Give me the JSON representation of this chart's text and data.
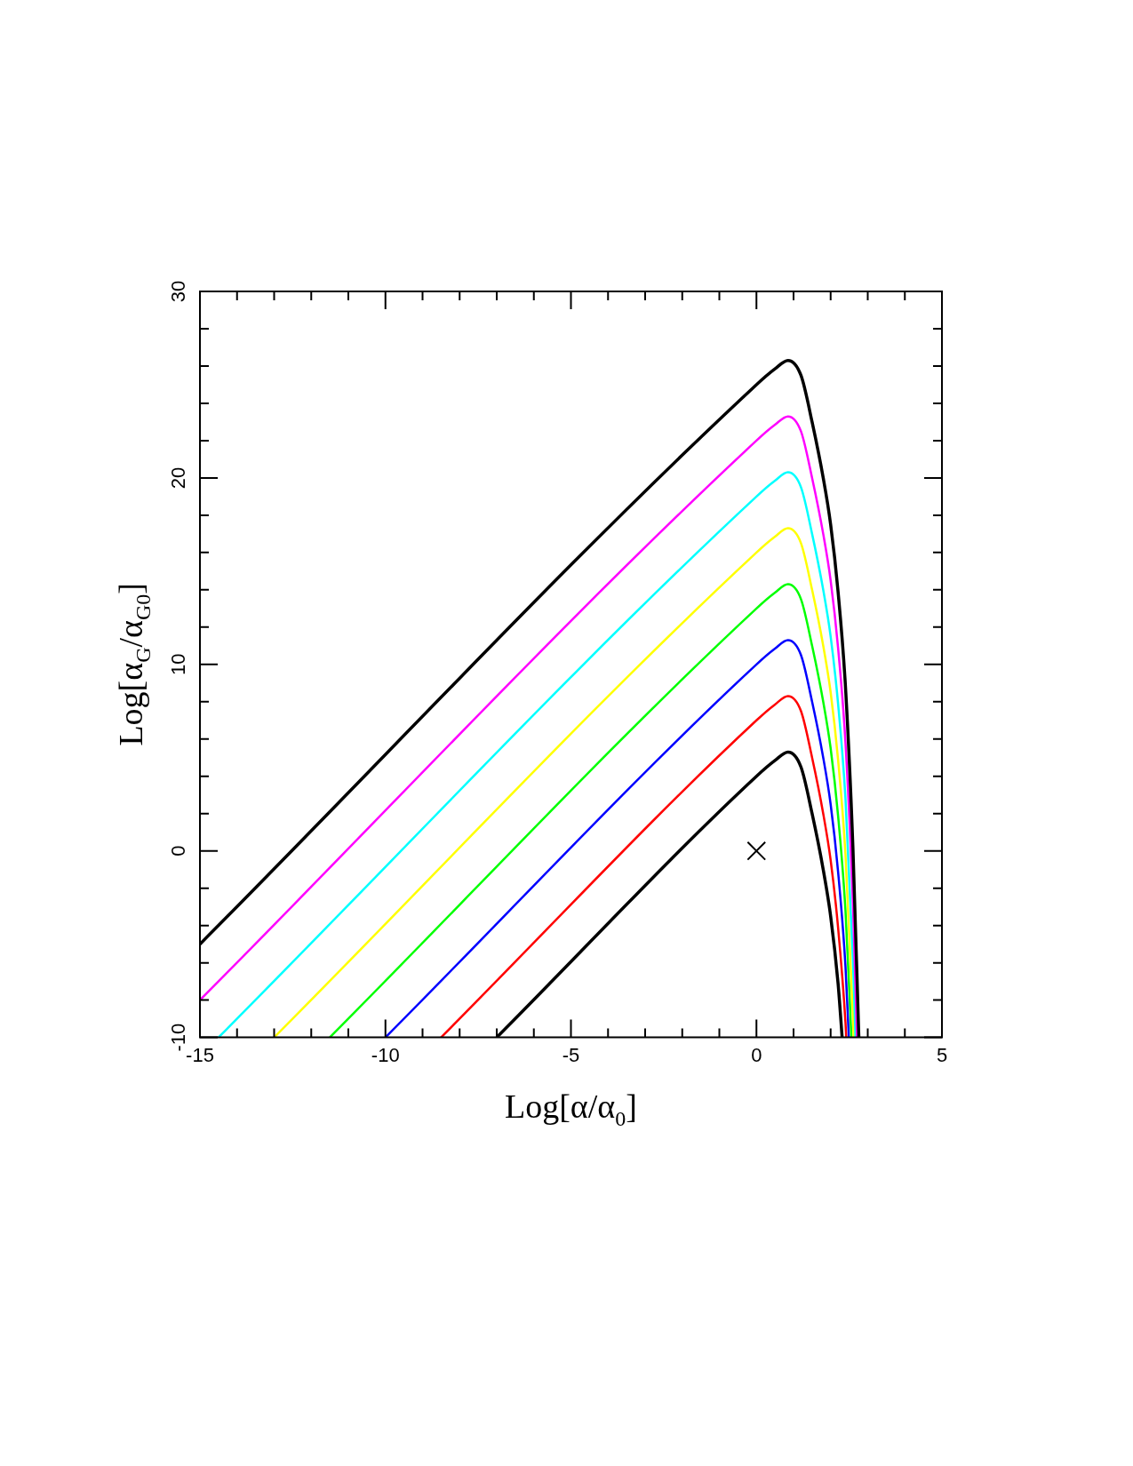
{
  "chart_data": {
    "type": "line",
    "xlabel": "Log[α/α$_{0}$]",
    "ylabel": "Log[α$_{G}$/α$_{G0}$]",
    "xlim": [
      -15,
      5
    ],
    "ylim": [
      -10,
      30
    ],
    "xticks": [
      -15,
      {
        "value": -14,
        "label": null
      },
      {
        "value": -13,
        "label": null
      },
      {
        "value": -12,
        "label": null
      },
      {
        "value": -11,
        "label": null
      },
      -10,
      {
        "value": -9,
        "label": null
      },
      {
        "value": -8,
        "label": null
      },
      {
        "value": -7,
        "label": null
      },
      {
        "value": -6,
        "label": null
      },
      -5,
      {
        "value": -4,
        "label": null
      },
      {
        "value": -3,
        "label": null
      },
      {
        "value": -2,
        "label": null
      },
      {
        "value": -1,
        "label": null
      },
      0,
      {
        "value": 1,
        "label": null
      },
      {
        "value": 2,
        "label": null
      },
      {
        "value": 3,
        "label": null
      },
      {
        "value": 4,
        "label": null
      },
      5
    ],
    "yticks": [
      -10,
      {
        "value": -8,
        "label": null
      },
      {
        "value": -6,
        "label": null
      },
      {
        "value": -4,
        "label": null
      },
      {
        "value": -2,
        "label": null
      },
      0,
      {
        "value": 2,
        "label": null
      },
      {
        "value": 4,
        "label": null
      },
      {
        "value": 6,
        "label": null
      },
      {
        "value": 8,
        "label": null
      },
      10,
      {
        "value": 12,
        "label": null
      },
      {
        "value": 14,
        "label": null
      },
      {
        "value": 16,
        "label": null
      },
      {
        "value": 18,
        "label": null
      },
      20,
      {
        "value": 22,
        "label": null
      },
      {
        "value": 24,
        "label": null
      },
      {
        "value": 26,
        "label": null
      },
      {
        "value": 28,
        "label": null
      },
      30
    ],
    "marker": "none",
    "series": [
      {
        "color": "#000000",
        "x": [
          -15,
          0,
          0.5,
          0.85,
          1.2,
          1.5,
          1.8,
          2.0,
          2.2,
          2.4,
          2.6,
          2.76
        ],
        "values": [
          -5,
          25,
          25.85,
          26.3,
          25.5,
          23,
          20,
          17.5,
          13.9,
          8.8,
          0.2,
          -10
        ]
      },
      {
        "color": "#ff00ff",
        "x": [
          -15,
          0,
          0.5,
          0.85,
          1.2,
          1.5,
          1.8,
          2.0,
          2.2,
          2.4,
          2.6,
          2.71
        ],
        "values": [
          -8,
          22,
          22.85,
          23.3,
          22.5,
          20,
          17,
          14.5,
          10.9,
          5.8,
          -2.8,
          -10
        ]
      },
      {
        "color": "#00ffff",
        "x": [
          -14.5,
          0,
          0.5,
          0.85,
          1.2,
          1.5,
          1.8,
          2.0,
          2.2,
          2.4,
          2.6,
          2.67
        ],
        "values": [
          -10,
          19,
          19.85,
          20.3,
          19.5,
          17,
          14,
          11.5,
          7.9,
          2.8,
          -5.8,
          -10
        ]
      },
      {
        "color": "#ffff00",
        "x": [
          -13,
          0,
          0.5,
          0.85,
          1.2,
          1.5,
          1.8,
          2.0,
          2.2,
          2.4,
          2.6,
          2.62
        ],
        "values": [
          -10,
          16,
          16.85,
          17.3,
          16.5,
          14,
          11,
          8.5,
          4.9,
          -0.2,
          -8.8,
          -10
        ]
      },
      {
        "color": "#00ff00",
        "x": [
          -11.5,
          0,
          0.5,
          0.85,
          1.2,
          1.5,
          1.8,
          2.0,
          2.2,
          2.4,
          2.56
        ],
        "values": [
          -10,
          13,
          13.85,
          14.3,
          13.5,
          11,
          8,
          5.5,
          1.9,
          -3.2,
          -10
        ]
      },
      {
        "color": "#0000ff",
        "x": [
          -10,
          0,
          0.5,
          0.85,
          1.2,
          1.5,
          1.8,
          2.0,
          2.2,
          2.4,
          2.49
        ],
        "values": [
          -10,
          10,
          10.85,
          11.3,
          10.5,
          8,
          5,
          2.5,
          -1.1,
          -6.2,
          -10
        ]
      },
      {
        "color": "#ff0000",
        "x": [
          -8.5,
          0,
          0.5,
          0.85,
          1.2,
          1.5,
          1.8,
          2.0,
          2.2,
          2.4,
          2.42
        ],
        "values": [
          -10,
          7,
          7.85,
          8.3,
          7.5,
          5,
          2,
          -0.5,
          -4.1,
          -9.2,
          -10
        ]
      },
      {
        "color": "#000000",
        "x": [
          -7,
          0,
          0.5,
          0.85,
          1.2,
          1.5,
          1.8,
          2.0,
          2.2,
          2.31
        ],
        "values": [
          -10,
          4,
          4.85,
          5.3,
          4.5,
          2,
          -1,
          -3.5,
          -7.1,
          -10
        ]
      },
      {
        "type": "scatter",
        "marker": "cross",
        "color": "#000000",
        "x": [
          0
        ],
        "values": [
          0
        ]
      }
    ]
  }
}
